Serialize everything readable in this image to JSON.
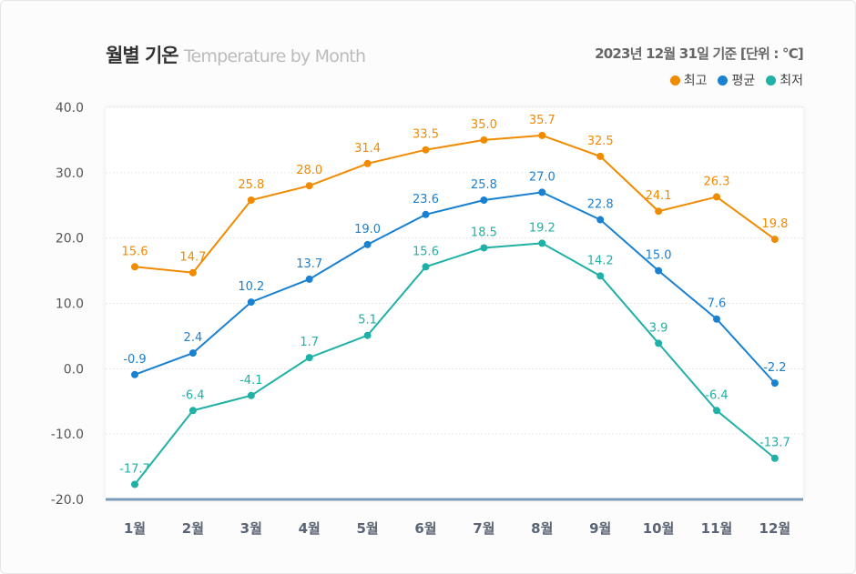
{
  "header": {
    "title": "월별 기온",
    "subtitle": "Temperature by Month",
    "basis": "2023년 12월 31일 기준  [단위 : °C]"
  },
  "chart_data": {
    "type": "line",
    "title": "월별 기온",
    "categories": [
      "1월",
      "2월",
      "3월",
      "4월",
      "5월",
      "6월",
      "7월",
      "8월",
      "9월",
      "10월",
      "11월",
      "12월"
    ],
    "ylim": [
      -20,
      40
    ],
    "yticks": [
      "40.0",
      "30.0",
      "20.0",
      "10.0",
      "0.0",
      "-10.0",
      "-20.0"
    ],
    "ytick_values": [
      40,
      30,
      20,
      10,
      0,
      -10,
      -20
    ],
    "grid": true,
    "legend_position": "top-right",
    "series": [
      {
        "name": "최고",
        "color": "#f08a00",
        "values": [
          15.6,
          14.7,
          25.8,
          28.0,
          31.4,
          33.5,
          35.0,
          35.7,
          32.5,
          24.1,
          26.3,
          19.8
        ],
        "labels": [
          "15.6",
          "14.7",
          "25.8",
          "28.0",
          "31.4",
          "33.5",
          "35.0",
          "35.7",
          "32.5",
          "24.1",
          "26.3",
          "19.8"
        ]
      },
      {
        "name": "평균",
        "color": "#1a80d0",
        "values": [
          -0.9,
          2.4,
          10.2,
          13.7,
          19.0,
          23.6,
          25.8,
          27.0,
          22.8,
          15.0,
          7.6,
          -2.2
        ],
        "labels": [
          "-0.9",
          "2.4",
          "10.2",
          "13.7",
          "19.0",
          "23.6",
          "25.8",
          "27.0",
          "22.8",
          "15.0",
          "7.6",
          "-2.2"
        ]
      },
      {
        "name": "최저",
        "color": "#1fb0a6",
        "values": [
          -17.7,
          -6.4,
          -4.1,
          1.7,
          5.1,
          15.6,
          18.5,
          19.2,
          14.2,
          3.9,
          -6.4,
          -13.7
        ],
        "labels": [
          "-17.7",
          "-6.4",
          "-4.1",
          "1.7",
          "5.1",
          "15.6",
          "18.5",
          "19.2",
          "14.2",
          "3.9",
          "-6.4",
          "-13.7"
        ]
      }
    ]
  }
}
